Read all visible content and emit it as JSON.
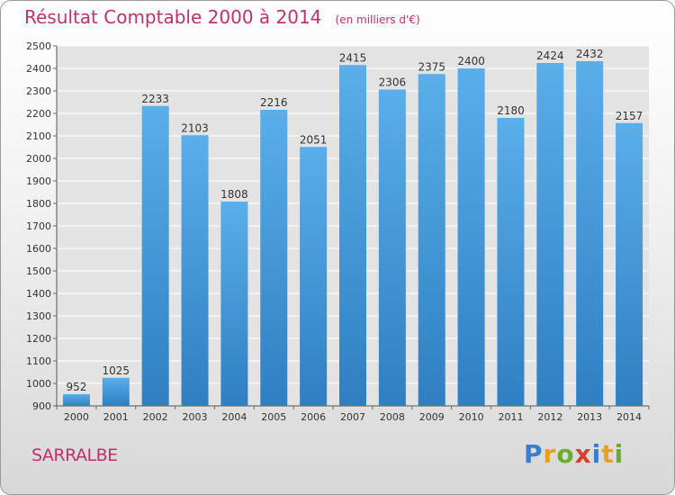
{
  "title": "Résultat Comptable 2000 à 2014",
  "unit_note": "(en milliers d'€)",
  "place_name": "SARRALBE",
  "logo": {
    "letters": [
      {
        "char": "P",
        "color": "#3a7ec8"
      },
      {
        "char": "r",
        "color": "#e8a11c"
      },
      {
        "char": "o",
        "color": "#6dac2d"
      },
      {
        "char": "x",
        "color": "#d7402c"
      },
      {
        "char": "i",
        "color": "#3a7ec8"
      },
      {
        "char": "t",
        "color": "#e8a11c"
      },
      {
        "char": "i",
        "color": "#6dac2d"
      }
    ]
  },
  "chart_data": {
    "type": "bar",
    "categories": [
      "2000",
      "2001",
      "2002",
      "2003",
      "2004",
      "2005",
      "2006",
      "2007",
      "2008",
      "2009",
      "2010",
      "2011",
      "2012",
      "2013",
      "2014"
    ],
    "values": [
      952,
      1025,
      2233,
      2103,
      1808,
      2216,
      2051,
      2415,
      2306,
      2375,
      2400,
      2180,
      2424,
      2432,
      2157
    ],
    "ylim": [
      900,
      2500
    ],
    "yticks": [
      900,
      1000,
      1100,
      1200,
      1300,
      1400,
      1500,
      1600,
      1700,
      1800,
      1900,
      2000,
      2100,
      2200,
      2300,
      2400,
      2500
    ],
    "grid": true,
    "bar_color_top": "#5aaeea",
    "bar_color_bottom": "#2f7fc2",
    "plot_bg": "#e3e3e3",
    "grid_color": "#ffffff"
  }
}
